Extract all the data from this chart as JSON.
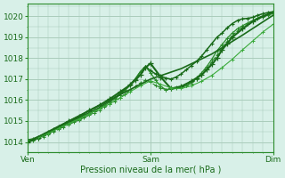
{
  "background_color": "#d8f0e8",
  "grid_color": "#aaccbb",
  "xlim": [
    0,
    48
  ],
  "ylim": [
    1013.7,
    1020.6
  ],
  "yticks": [
    1014,
    1015,
    1016,
    1017,
    1018,
    1019,
    1020
  ],
  "xtick_labels": [
    "Ven",
    "Sam",
    "Dim"
  ],
  "xtick_positions": [
    0,
    24,
    48
  ],
  "xlabel": "Pression niveau de la mer( hPa )",
  "series": [
    {
      "x": [
        0,
        1,
        2,
        3,
        4,
        5,
        6,
        7,
        8,
        9,
        10,
        11,
        12,
        13,
        14,
        15,
        16,
        17,
        18,
        19,
        20,
        21,
        22,
        23,
        24,
        25,
        26,
        27,
        28,
        29,
        30,
        31,
        32,
        33,
        34,
        35,
        36,
        37,
        38,
        39,
        40,
        41,
        42,
        43,
        44,
        45,
        46,
        47,
        48
      ],
      "y": [
        1014.1,
        1014.15,
        1014.25,
        1014.35,
        1014.45,
        1014.6,
        1014.7,
        1014.82,
        1014.93,
        1015.05,
        1015.15,
        1015.28,
        1015.4,
        1015.52,
        1015.65,
        1015.8,
        1015.95,
        1016.1,
        1016.3,
        1016.5,
        1016.75,
        1017.0,
        1017.35,
        1017.6,
        1017.4,
        1017.25,
        1017.15,
        1017.05,
        1017.0,
        1017.1,
        1017.25,
        1017.45,
        1017.65,
        1017.85,
        1018.1,
        1018.4,
        1018.7,
        1019.0,
        1019.2,
        1019.45,
        1019.65,
        1019.8,
        1019.88,
        1019.9,
        1019.95,
        1020.05,
        1020.12,
        1020.18,
        1020.22
      ],
      "style": "-",
      "marker": "+",
      "color": "#1a6b1a",
      "lw": 1.1,
      "ms": 3.5,
      "mew": 0.8
    },
    {
      "x": [
        0,
        1,
        2,
        3,
        4,
        5,
        6,
        7,
        8,
        9,
        10,
        11,
        12,
        13,
        14,
        15,
        16,
        17,
        18,
        19,
        20,
        21,
        22,
        23,
        24,
        25,
        26,
        27,
        28,
        29,
        30,
        31,
        32,
        33,
        34,
        35,
        36,
        37,
        38,
        39,
        40,
        41,
        42,
        43,
        44,
        45,
        46,
        47,
        48
      ],
      "y": [
        1014.05,
        1014.1,
        1014.2,
        1014.3,
        1014.4,
        1014.55,
        1014.65,
        1014.78,
        1014.88,
        1015.0,
        1015.1,
        1015.22,
        1015.35,
        1015.47,
        1015.6,
        1015.75,
        1015.9,
        1016.05,
        1016.25,
        1016.45,
        1016.7,
        1017.0,
        1017.35,
        1017.6,
        1017.3,
        1016.95,
        1016.65,
        1016.5,
        1016.55,
        1016.6,
        1016.65,
        1016.7,
        1016.85,
        1017.05,
        1017.3,
        1017.6,
        1017.95,
        1018.35,
        1018.65,
        1018.95,
        1019.2,
        1019.4,
        1019.55,
        1019.68,
        1019.8,
        1019.92,
        1020.02,
        1020.1,
        1020.16
      ],
      "style": "-",
      "marker": "+",
      "color": "#2a8b2a",
      "lw": 0.9,
      "ms": 3.0,
      "mew": 0.7
    },
    {
      "x": [
        0,
        1,
        2,
        3,
        4,
        5,
        6,
        7,
        8,
        9,
        10,
        11,
        12,
        13,
        14,
        15,
        16,
        17,
        18,
        19,
        20,
        21,
        22,
        23,
        24,
        25,
        26,
        27,
        28,
        29,
        30,
        31,
        32,
        33,
        34,
        35,
        36,
        37,
        38,
        39,
        40,
        41,
        42,
        43,
        44,
        45,
        46,
        47,
        48
      ],
      "y": [
        1014.0,
        1014.05,
        1014.15,
        1014.25,
        1014.35,
        1014.5,
        1014.6,
        1014.72,
        1014.83,
        1014.94,
        1015.05,
        1015.16,
        1015.28,
        1015.4,
        1015.52,
        1015.66,
        1015.8,
        1015.94,
        1016.1,
        1016.28,
        1016.47,
        1016.65,
        1016.82,
        1016.95,
        1016.85,
        1016.7,
        1016.58,
        1016.5,
        1016.52,
        1016.55,
        1016.6,
        1016.68,
        1016.8,
        1017.0,
        1017.22,
        1017.5,
        1017.82,
        1018.15,
        1018.5,
        1018.8,
        1019.08,
        1019.3,
        1019.48,
        1019.62,
        1019.75,
        1019.88,
        1019.98,
        1020.06,
        1020.12
      ],
      "style": "--",
      "marker": "+",
      "color": "#2a8b2a",
      "lw": 0.8,
      "ms": 2.5,
      "mew": 0.7
    },
    {
      "x": [
        0,
        2,
        4,
        6,
        8,
        10,
        12,
        14,
        16,
        18,
        20,
        21,
        22,
        23,
        24,
        26,
        28,
        30,
        32,
        33,
        34,
        35,
        36,
        37,
        38,
        39,
        40,
        42,
        44,
        46,
        48
      ],
      "y": [
        1014.0,
        1014.2,
        1014.45,
        1014.72,
        1014.98,
        1015.22,
        1015.5,
        1015.75,
        1016.05,
        1016.38,
        1016.72,
        1016.95,
        1017.2,
        1017.55,
        1017.75,
        1017.1,
        1016.55,
        1016.65,
        1016.9,
        1017.05,
        1017.2,
        1017.45,
        1017.7,
        1018.0,
        1018.4,
        1018.7,
        1019.0,
        1019.4,
        1019.75,
        1020.0,
        1020.2
      ],
      "style": "-",
      "marker": "+",
      "color": "#1a6b1a",
      "lw": 1.5,
      "ms": 4.0,
      "mew": 0.9
    },
    {
      "x": [
        0,
        2,
        4,
        6,
        8,
        10,
        12,
        14,
        16,
        18,
        20,
        22,
        24,
        26,
        28,
        30,
        32,
        34,
        36,
        38,
        40,
        42,
        44,
        46,
        48
      ],
      "y": [
        1014.05,
        1014.22,
        1014.42,
        1014.65,
        1014.88,
        1015.1,
        1015.35,
        1015.58,
        1015.82,
        1016.1,
        1016.4,
        1016.68,
        1016.92,
        1016.75,
        1016.58,
        1016.55,
        1016.68,
        1016.9,
        1017.18,
        1017.55,
        1017.95,
        1018.4,
        1018.82,
        1019.25,
        1019.62
      ],
      "style": "-",
      "marker": "+",
      "color": "#3aaa3a",
      "lw": 0.8,
      "ms": 2.5,
      "mew": 0.7
    },
    {
      "x": [
        0,
        6,
        12,
        18,
        24,
        30,
        36,
        42,
        48
      ],
      "y": [
        1014.0,
        1014.75,
        1015.5,
        1016.25,
        1017.0,
        1017.5,
        1018.2,
        1019.1,
        1020.05
      ],
      "style": "-",
      "marker": null,
      "color": "#1a6b1a",
      "lw": 1.2,
      "ms": 0,
      "mew": 0
    }
  ]
}
